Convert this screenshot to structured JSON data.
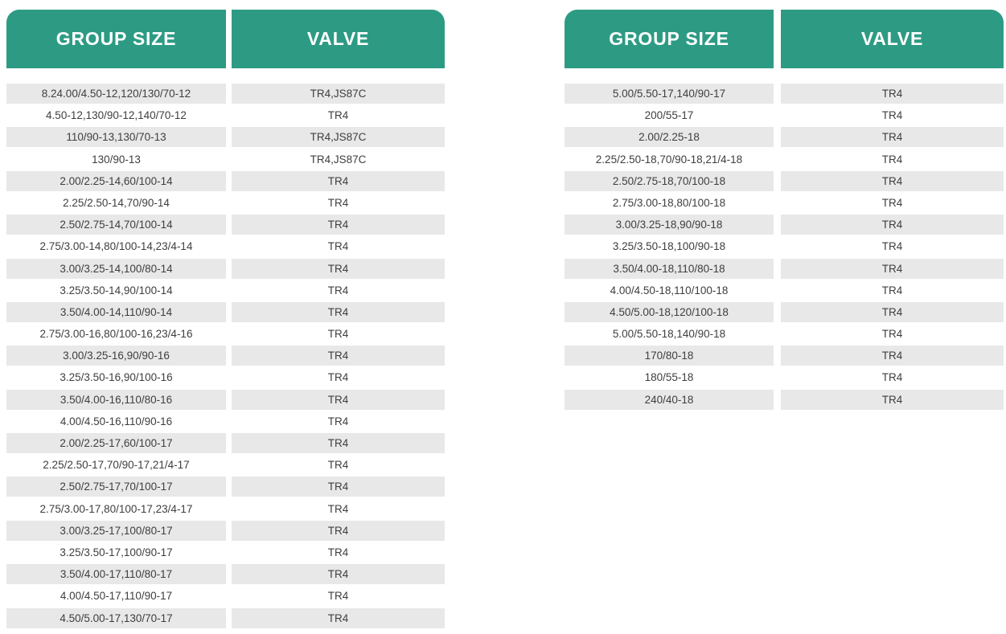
{
  "headers": {
    "group_size": "GROUP SIZE",
    "valve": "VALVE"
  },
  "colors": {
    "header_bg": "#2d9b84",
    "header_text": "#ffffff",
    "row_stripe": "#e8e8e8",
    "row_text": "#3e3e3e"
  },
  "tables": [
    {
      "rows": [
        {
          "group_size": "8.24.00/4.50-12,120/130/70-12",
          "valve": "TR4,JS87C"
        },
        {
          "group_size": "4.50-12,130/90-12,140/70-12",
          "valve": "TR4"
        },
        {
          "group_size": "110/90-13,130/70-13",
          "valve": "TR4,JS87C"
        },
        {
          "group_size": "130/90-13",
          "valve": "TR4,JS87C"
        },
        {
          "group_size": "2.00/2.25-14,60/100-14",
          "valve": "TR4"
        },
        {
          "group_size": "2.25/2.50-14,70/90-14",
          "valve": "TR4"
        },
        {
          "group_size": "2.50/2.75-14,70/100-14",
          "valve": "TR4"
        },
        {
          "group_size": "2.75/3.00-14,80/100-14,23/4-14",
          "valve": "TR4"
        },
        {
          "group_size": "3.00/3.25-14,100/80-14",
          "valve": "TR4"
        },
        {
          "group_size": "3.25/3.50-14,90/100-14",
          "valve": "TR4"
        },
        {
          "group_size": "3.50/4.00-14,110/90-14",
          "valve": "TR4"
        },
        {
          "group_size": "2.75/3.00-16,80/100-16,23/4-16",
          "valve": "TR4"
        },
        {
          "group_size": "3.00/3.25-16,90/90-16",
          "valve": "TR4"
        },
        {
          "group_size": "3.25/3.50-16,90/100-16",
          "valve": "TR4"
        },
        {
          "group_size": "3.50/4.00-16,110/80-16",
          "valve": "TR4"
        },
        {
          "group_size": "4.00/4.50-16,110/90-16",
          "valve": "TR4"
        },
        {
          "group_size": "2.00/2.25-17,60/100-17",
          "valve": "TR4"
        },
        {
          "group_size": "2.25/2.50-17,70/90-17,21/4-17",
          "valve": "TR4"
        },
        {
          "group_size": "2.50/2.75-17,70/100-17",
          "valve": "TR4"
        },
        {
          "group_size": "2.75/3.00-17,80/100-17,23/4-17",
          "valve": "TR4"
        },
        {
          "group_size": "3.00/3.25-17,100/80-17",
          "valve": "TR4"
        },
        {
          "group_size": "3.25/3.50-17,100/90-17",
          "valve": "TR4"
        },
        {
          "group_size": "3.50/4.00-17,110/80-17",
          "valve": "TR4"
        },
        {
          "group_size": "4.00/4.50-17,110/90-17",
          "valve": "TR4"
        },
        {
          "group_size": "4.50/5.00-17,130/70-17",
          "valve": "TR4"
        }
      ]
    },
    {
      "rows": [
        {
          "group_size": "5.00/5.50-17,140/90-17",
          "valve": "TR4"
        },
        {
          "group_size": "200/55-17",
          "valve": "TR4"
        },
        {
          "group_size": "2.00/2.25-18",
          "valve": "TR4"
        },
        {
          "group_size": "2.25/2.50-18,70/90-18,21/4-18",
          "valve": "TR4"
        },
        {
          "group_size": "2.50/2.75-18,70/100-18",
          "valve": "TR4"
        },
        {
          "group_size": "2.75/3.00-18,80/100-18",
          "valve": "TR4"
        },
        {
          "group_size": "3.00/3.25-18,90/90-18",
          "valve": "TR4"
        },
        {
          "group_size": "3.25/3.50-18,100/90-18",
          "valve": "TR4"
        },
        {
          "group_size": "3.50/4.00-18,110/80-18",
          "valve": "TR4"
        },
        {
          "group_size": "4.00/4.50-18,110/100-18",
          "valve": "TR4"
        },
        {
          "group_size": "4.50/5.00-18,120/100-18",
          "valve": "TR4"
        },
        {
          "group_size": "5.00/5.50-18,140/90-18",
          "valve": "TR4"
        },
        {
          "group_size": "170/80-18",
          "valve": "TR4"
        },
        {
          "group_size": "180/55-18",
          "valve": "TR4"
        },
        {
          "group_size": "240/40-18",
          "valve": "TR4"
        }
      ]
    }
  ]
}
